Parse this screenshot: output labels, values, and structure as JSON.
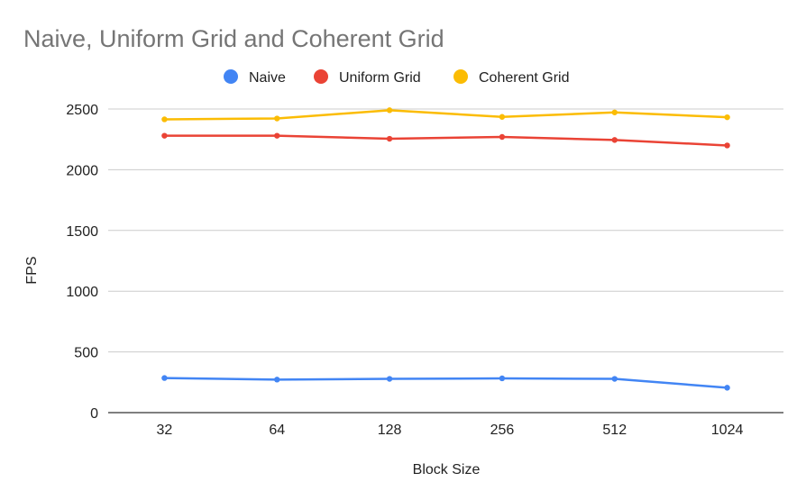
{
  "chart_data": {
    "type": "line",
    "title": "Naive, Uniform Grid and Coherent Grid",
    "xlabel": "Block Size",
    "ylabel": "FPS",
    "categories": [
      "32",
      "64",
      "128",
      "256",
      "512",
      "1024"
    ],
    "ylim": [
      0,
      2500
    ],
    "yticks": [
      "0",
      "500",
      "1000",
      "1500",
      "2000",
      "2500"
    ],
    "grid": true,
    "legend_position": "top",
    "series": [
      {
        "name": "Naive",
        "color": "#4285f4",
        "values": [
          285,
          272,
          278,
          282,
          278,
          205
        ]
      },
      {
        "name": "Uniform Grid",
        "color": "#ea4335",
        "values": [
          2280,
          2280,
          2255,
          2270,
          2245,
          2200
        ]
      },
      {
        "name": "Coherent Grid",
        "color": "#fbbc04",
        "values": [
          2415,
          2422,
          2490,
          2435,
          2472,
          2432
        ]
      }
    ]
  }
}
